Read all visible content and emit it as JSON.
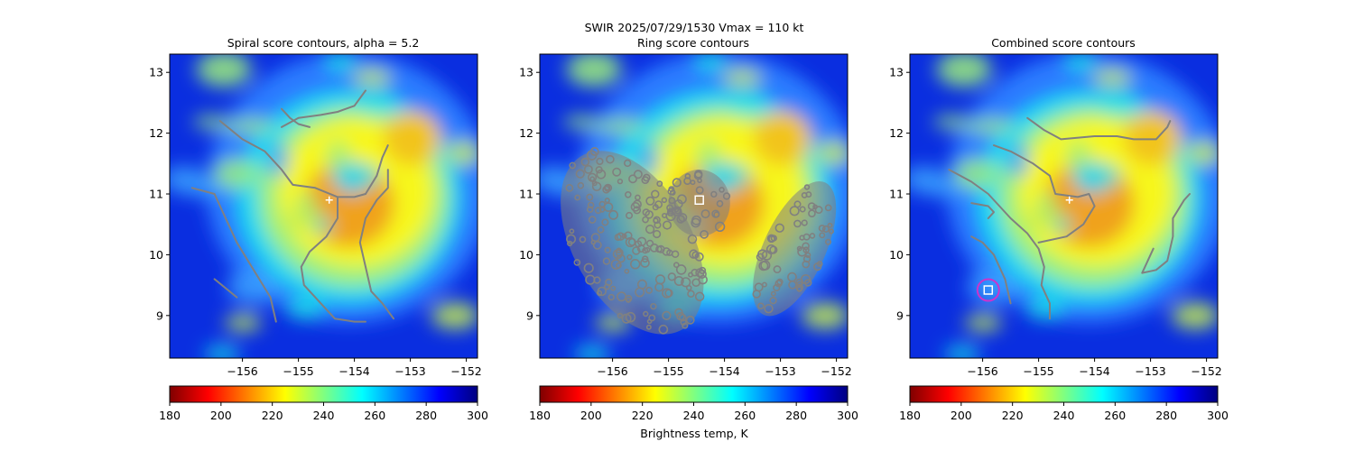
{
  "figure": {
    "suptitle": "SWIR  2025/07/29/1530    Vmax = 110 kt",
    "colorbar_label": "Brightness temp, K",
    "colormap": "jet_r",
    "colormap_colors": [
      "#800000",
      "#ff0000",
      "#ff8000",
      "#ffff00",
      "#80ff80",
      "#00ffff",
      "#0080ff",
      "#0000ff",
      "#000080"
    ],
    "contour_color": "#808080",
    "marker_center_color": "#ffffff",
    "marker_circle_color": "#cc33cc"
  },
  "chart_data": [
    {
      "type": "heatmap",
      "title": "Spiral score contours, alpha =  5.2",
      "xlim": [
        -157.3,
        -151.8
      ],
      "ylim": [
        8.3,
        13.3
      ],
      "xticks": [
        -156,
        -155,
        -154,
        -153,
        -152
      ],
      "yticks": [
        9,
        10,
        11,
        12,
        13
      ],
      "colorbar": {
        "range": [
          180,
          300
        ],
        "ticks": [
          180,
          200,
          220,
          240,
          260,
          280,
          300
        ]
      },
      "storm_center": {
        "lon": -154.45,
        "lat": 10.9
      },
      "contours": [
        [
          [
            -155.3,
            12.1
          ],
          [
            -155.0,
            12.25
          ],
          [
            -154.6,
            12.3
          ],
          [
            -154.3,
            12.35
          ],
          [
            -154.0,
            12.45
          ],
          [
            -153.8,
            12.7
          ]
        ],
        [
          [
            -155.3,
            12.4
          ],
          [
            -155.15,
            12.25
          ],
          [
            -155.0,
            12.15
          ],
          [
            -154.8,
            12.1
          ]
        ],
        [
          [
            -156.4,
            12.2
          ],
          [
            -156.0,
            11.9
          ],
          [
            -155.6,
            11.7
          ],
          [
            -155.3,
            11.4
          ],
          [
            -155.1,
            11.15
          ],
          [
            -154.7,
            11.1
          ],
          [
            -154.3,
            10.95
          ],
          [
            -154.0,
            10.95
          ],
          [
            -153.8,
            11.0
          ]
        ],
        [
          [
            -153.8,
            11.0
          ],
          [
            -153.6,
            11.3
          ],
          [
            -153.5,
            11.6
          ],
          [
            -153.4,
            11.8
          ]
        ],
        [
          [
            -154.3,
            10.95
          ],
          [
            -154.3,
            10.6
          ],
          [
            -154.5,
            10.3
          ],
          [
            -154.8,
            10.05
          ],
          [
            -154.95,
            9.8
          ],
          [
            -154.9,
            9.5
          ],
          [
            -154.6,
            9.2
          ],
          [
            -154.35,
            8.95
          ],
          [
            -154.0,
            8.9
          ],
          [
            -153.8,
            8.9
          ]
        ],
        [
          [
            -153.4,
            11.4
          ],
          [
            -153.4,
            11.1
          ],
          [
            -153.6,
            10.9
          ],
          [
            -153.8,
            10.6
          ],
          [
            -153.9,
            10.2
          ],
          [
            -153.8,
            9.8
          ],
          [
            -153.7,
            9.4
          ],
          [
            -153.5,
            9.2
          ],
          [
            -153.3,
            8.95
          ]
        ],
        [
          [
            -156.9,
            11.1
          ],
          [
            -156.5,
            11.0
          ],
          [
            -156.3,
            10.6
          ],
          [
            -156.1,
            10.2
          ],
          [
            -155.9,
            9.9
          ],
          [
            -155.7,
            9.6
          ],
          [
            -155.5,
            9.3
          ],
          [
            -155.4,
            8.9
          ]
        ],
        [
          [
            -156.5,
            9.6
          ],
          [
            -156.3,
            9.45
          ],
          [
            -156.1,
            9.3
          ]
        ]
      ]
    },
    {
      "type": "heatmap",
      "title": "Ring score contours",
      "xlim": [
        -157.3,
        -151.8
      ],
      "ylim": [
        8.3,
        13.3
      ],
      "xticks": [
        -156,
        -155,
        -154,
        -153,
        -152
      ],
      "yticks": [
        9,
        10,
        11,
        12,
        13
      ],
      "colorbar": {
        "range": [
          180,
          300
        ],
        "ticks": [
          180,
          200,
          220,
          240,
          260,
          280,
          300
        ]
      },
      "storm_center": {
        "lon": -154.45,
        "lat": 10.9
      },
      "contour_blobs": [
        {
          "center": [
            -155.65,
            10.2
          ],
          "radii": [
            1.05,
            1.65
          ],
          "rotation": -30
        },
        {
          "center": [
            -154.45,
            10.85
          ],
          "radii": [
            0.55,
            0.55
          ],
          "rotation": 0
        },
        {
          "center": [
            -152.75,
            10.1
          ],
          "radii": [
            0.55,
            1.2
          ],
          "rotation": 25
        }
      ]
    },
    {
      "type": "heatmap",
      "title": "Combined score contours",
      "xlim": [
        -157.3,
        -151.8
      ],
      "ylim": [
        8.3,
        13.3
      ],
      "xticks": [
        -156,
        -155,
        -154,
        -153,
        -152
      ],
      "yticks": [
        9,
        10,
        11,
        12,
        13
      ],
      "colorbar": {
        "range": [
          180,
          300
        ],
        "ticks": [
          180,
          200,
          220,
          240,
          260,
          280,
          300
        ]
      },
      "storm_center": {
        "lon": -154.45,
        "lat": 10.9
      },
      "best_point": {
        "lon": -155.9,
        "lat": 9.42
      },
      "contours": [
        [
          [
            -155.2,
            12.25
          ],
          [
            -154.9,
            12.05
          ],
          [
            -154.6,
            11.9
          ],
          [
            -154.0,
            11.95
          ],
          [
            -153.6,
            11.95
          ],
          [
            -153.3,
            11.9
          ],
          [
            -152.9,
            11.9
          ],
          [
            -152.7,
            12.1
          ],
          [
            -152.65,
            12.2
          ]
        ],
        [
          [
            -156.2,
            10.85
          ],
          [
            -155.9,
            10.8
          ],
          [
            -155.8,
            10.7
          ],
          [
            -155.9,
            10.6
          ]
        ],
        [
          [
            -156.6,
            11.4
          ],
          [
            -156.4,
            11.3
          ],
          [
            -156.2,
            11.2
          ],
          [
            -155.9,
            11.0
          ],
          [
            -155.5,
            10.6
          ],
          [
            -155.2,
            10.35
          ],
          [
            -155.0,
            10.1
          ],
          [
            -154.9,
            9.8
          ],
          [
            -154.95,
            9.5
          ],
          [
            -154.8,
            9.2
          ],
          [
            -154.8,
            8.95
          ]
        ],
        [
          [
            -155.8,
            11.8
          ],
          [
            -155.5,
            11.7
          ],
          [
            -155.1,
            11.5
          ],
          [
            -154.8,
            11.3
          ],
          [
            -154.7,
            11.0
          ],
          [
            -154.3,
            10.95
          ],
          [
            -154.1,
            11.0
          ],
          [
            -154.0,
            10.8
          ],
          [
            -154.2,
            10.5
          ],
          [
            -154.5,
            10.3
          ],
          [
            -155.0,
            10.2
          ]
        ],
        [
          [
            -156.2,
            10.3
          ],
          [
            -156.0,
            10.2
          ],
          [
            -155.8,
            10.0
          ],
          [
            -155.7,
            9.8
          ],
          [
            -155.6,
            9.6
          ],
          [
            -155.5,
            9.2
          ]
        ],
        [
          [
            -152.95,
            10.1
          ],
          [
            -153.1,
            9.8
          ],
          [
            -153.15,
            9.7
          ],
          [
            -152.9,
            9.75
          ],
          [
            -152.7,
            9.9
          ],
          [
            -152.6,
            10.3
          ],
          [
            -152.6,
            10.6
          ],
          [
            -152.4,
            10.9
          ],
          [
            -152.3,
            11.0
          ]
        ]
      ]
    }
  ]
}
